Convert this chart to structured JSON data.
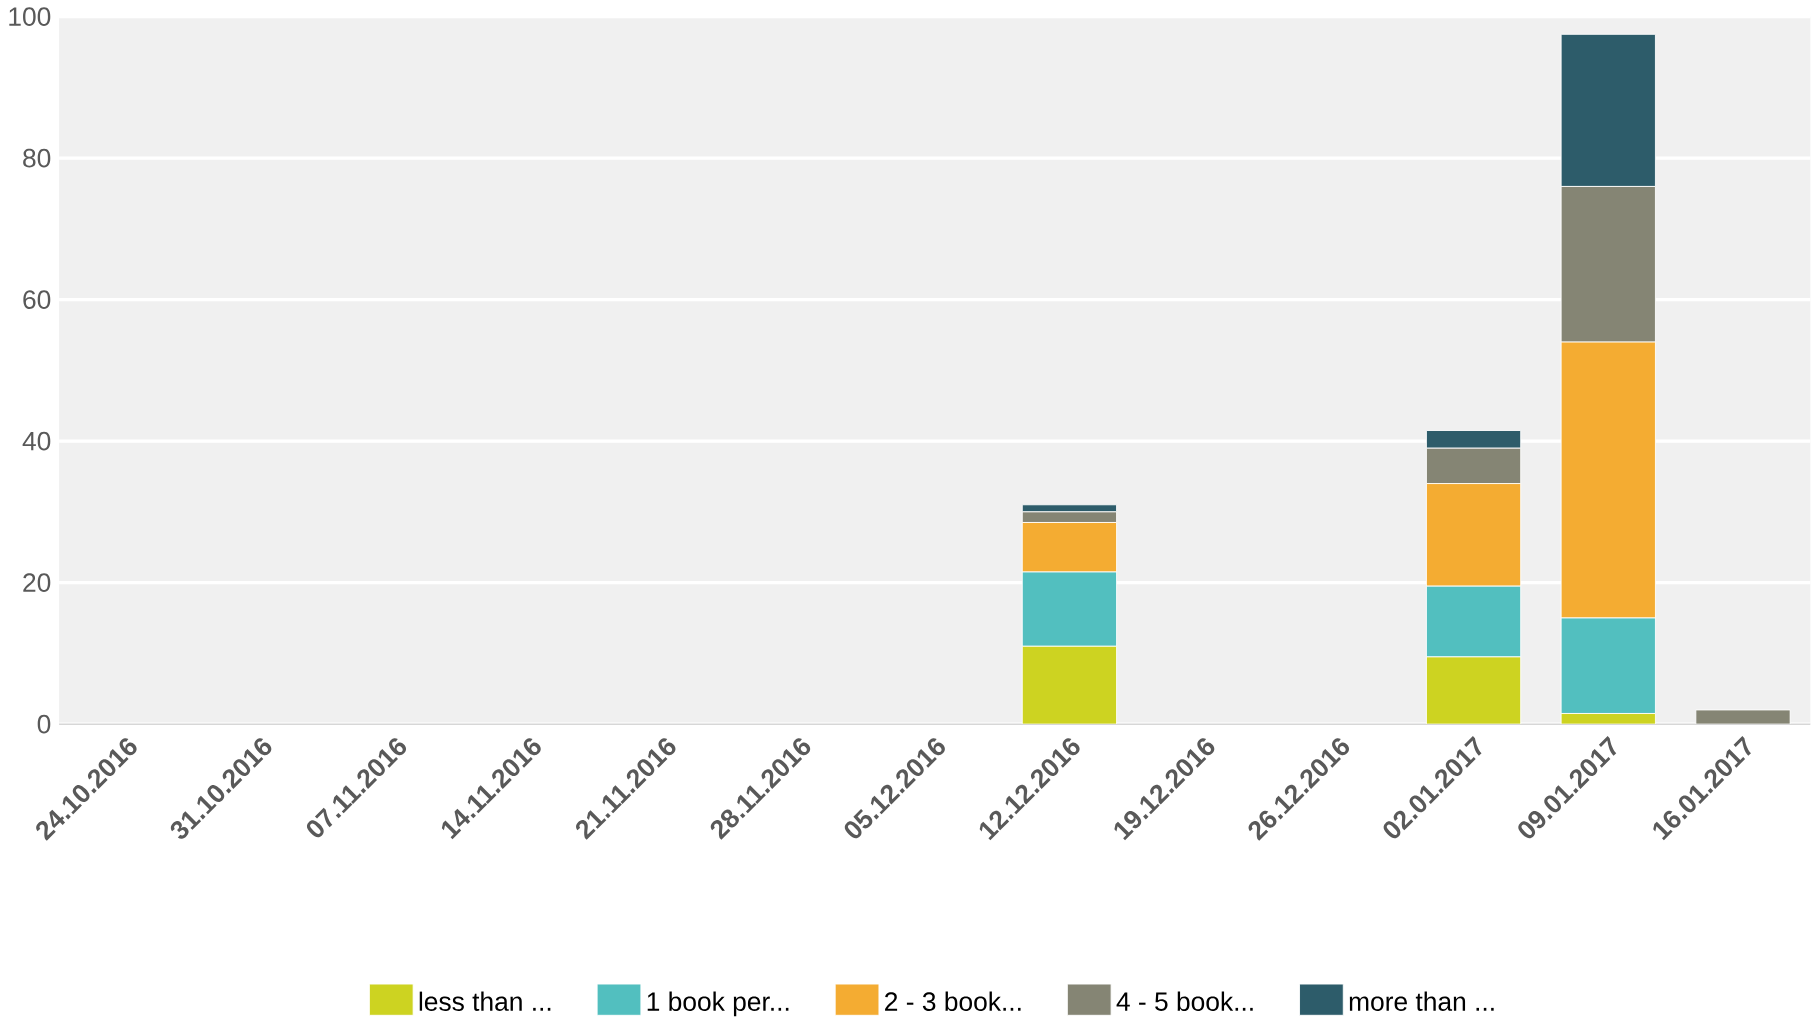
{
  "chart_data": {
    "type": "bar",
    "stacked": true,
    "categories": [
      "24.10.2016",
      "31.10.2016",
      "07.11.2016",
      "14.11.2016",
      "21.11.2016",
      "28.11.2016",
      "05.12.2016",
      "12.12.2016",
      "19.12.2016",
      "26.12.2016",
      "02.01.2017",
      "09.01.2017",
      "16.01.2017"
    ],
    "series": [
      {
        "name": "less than ...",
        "color": "#cdd321",
        "values": [
          0,
          0,
          0,
          0,
          0,
          0,
          0,
          11,
          0,
          0,
          9.5,
          1.5,
          0
        ]
      },
      {
        "name": "1 book per...",
        "color": "#52bfbf",
        "values": [
          0,
          0,
          0,
          0,
          0,
          0,
          0,
          10.5,
          0,
          0,
          10,
          13.5,
          0
        ]
      },
      {
        "name": "2 - 3 book...",
        "color": "#f4ac32",
        "values": [
          0,
          0,
          0,
          0,
          0,
          0,
          0,
          7,
          0,
          0,
          14.5,
          39,
          0
        ]
      },
      {
        "name": "4 - 5 book...",
        "color": "#858574",
        "values": [
          0,
          0,
          0,
          0,
          0,
          0,
          0,
          1.5,
          0,
          0,
          5,
          22,
          2
        ]
      },
      {
        "name": "more than ...",
        "color": "#2d5c6a",
        "values": [
          0,
          0,
          0,
          0,
          0,
          0,
          0,
          1,
          0,
          0,
          2.5,
          21.5,
          0
        ]
      }
    ],
    "ylim": [
      0,
      100
    ],
    "yticks": [
      0,
      20,
      40,
      60,
      80,
      100
    ],
    "grid": "y",
    "legend": "bottom"
  }
}
